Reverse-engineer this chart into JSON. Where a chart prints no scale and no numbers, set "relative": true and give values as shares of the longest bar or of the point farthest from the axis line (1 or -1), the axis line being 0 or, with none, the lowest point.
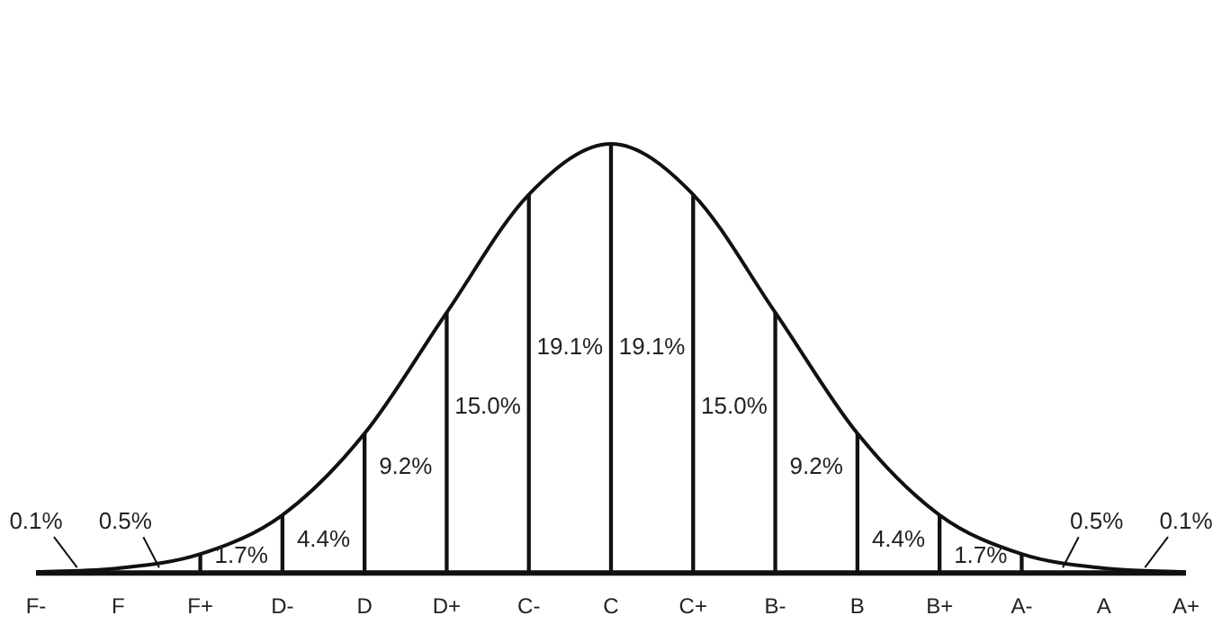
{
  "chart_data": {
    "type": "line",
    "relative": true,
    "categories": [
      "F-",
      "F",
      "F+",
      "D-",
      "D",
      "D+",
      "C-",
      "C",
      "C+",
      "B-",
      "B",
      "B+",
      "A-",
      "A",
      "A+"
    ],
    "series": [
      {
        "color": "#111111",
        "values": [
          0.002,
          0.011,
          0.044,
          0.135,
          0.325,
          0.607,
          0.882,
          1,
          0.882,
          0.607,
          0.325,
          0.135,
          0.044,
          0.011,
          0.002
        ]
      },
      {
        "type": "bar",
        "color": "#111111",
        "values": [
          null,
          null,
          0.044,
          0.135,
          0.325,
          0.607,
          0.882,
          1,
          0.882,
          0.607,
          0.325,
          0.135,
          0.044,
          null,
          null
        ]
      }
    ],
    "annotations": [
      "0.1%",
      "0.5%",
      "1.7%",
      "4.4%",
      "9.2%",
      "15.0%",
      "19.1%",
      "19.1%",
      "15.0%",
      "9.2%",
      "4.4%",
      "1.7%",
      "0.5%",
      "0.1%"
    ],
    "marker": "none",
    "grid": false,
    "legend": false
  }
}
